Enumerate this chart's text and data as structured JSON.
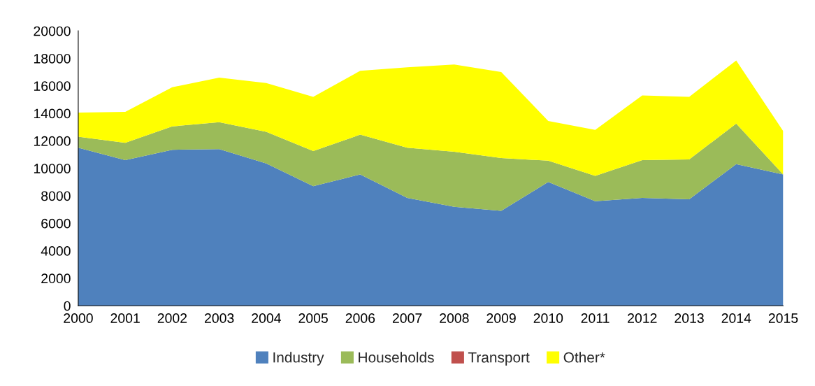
{
  "chart_data": {
    "type": "area",
    "stacked": true,
    "x": [
      2000,
      2001,
      2002,
      2003,
      2004,
      2005,
      2006,
      2007,
      2008,
      2009,
      2010,
      2011,
      2012,
      2013,
      2014,
      2015
    ],
    "series": [
      {
        "name": "Industry",
        "color": "#4f81bd",
        "values": [
          11500,
          10600,
          11350,
          11400,
          10350,
          8700,
          9550,
          7850,
          7200,
          6900,
          9000,
          7600,
          7850,
          7750,
          10300,
          9550
        ]
      },
      {
        "name": "Households",
        "color": "#9bbb59",
        "values": [
          800,
          1250,
          1700,
          1950,
          2300,
          2550,
          2900,
          3650,
          4000,
          3850,
          1550,
          1850,
          2750,
          2900,
          2950,
          0
        ]
      },
      {
        "name": "Transport",
        "color": "#c0504d",
        "values": [
          null,
          null,
          null,
          null,
          null,
          null,
          null,
          null,
          null,
          null,
          null,
          null,
          null,
          null,
          null,
          null
        ]
      },
      {
        "name": "Other*",
        "color": "#ffff00",
        "values": [
          1750,
          2250,
          2850,
          3250,
          3550,
          3950,
          4650,
          5850,
          6350,
          6250,
          2900,
          3350,
          4700,
          4550,
          4600,
          3150
        ]
      }
    ],
    "xlim": [
      2000,
      2015
    ],
    "xticks": [
      2000,
      2001,
      2002,
      2003,
      2004,
      2005,
      2006,
      2007,
      2008,
      2009,
      2010,
      2011,
      2012,
      2013,
      2014,
      2015
    ],
    "ylim": [
      0,
      20000
    ],
    "yticks": [
      0,
      2000,
      4000,
      6000,
      8000,
      10000,
      12000,
      14000,
      16000,
      18000,
      20000
    ],
    "grid": false,
    "legend": "bottom"
  }
}
